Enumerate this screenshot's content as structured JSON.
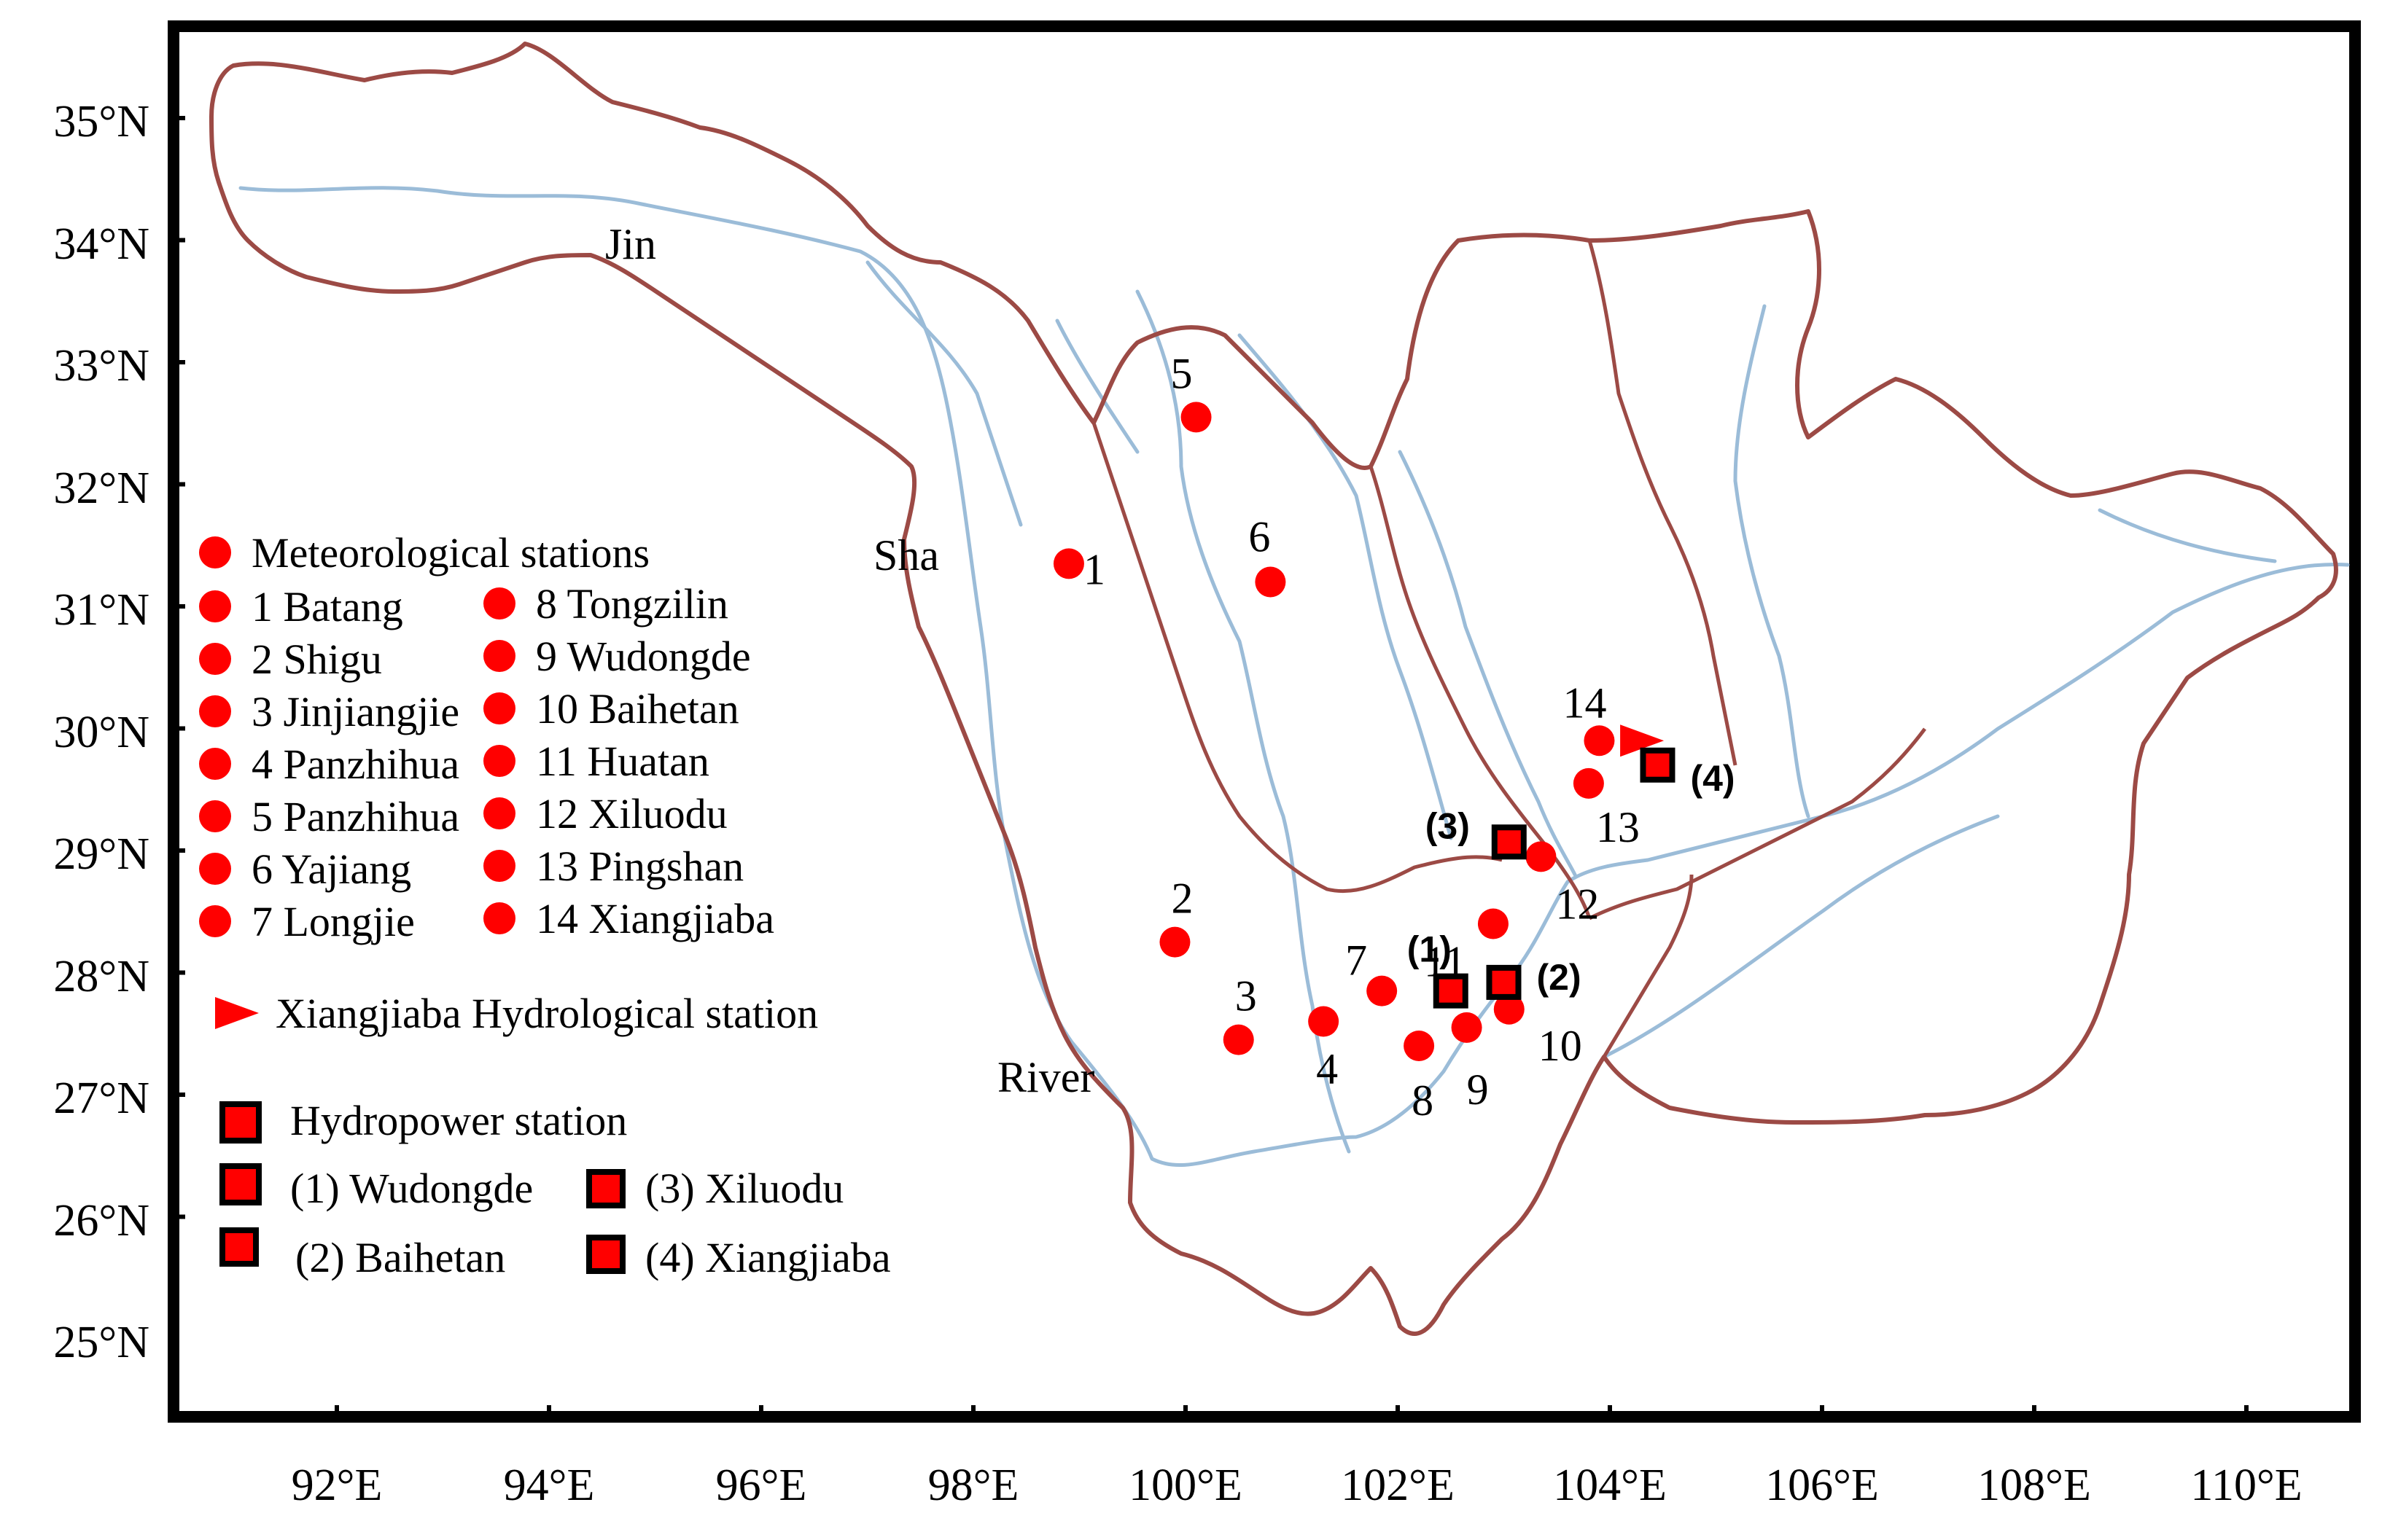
{
  "map": {
    "y_ticks": [
      "35°N",
      "34°N",
      "33°N",
      "32°N",
      "31°N",
      "30°N",
      "29°N",
      "28°N",
      "27°N",
      "26°N",
      "25°N"
    ],
    "x_ticks": [
      "92°E",
      "94°E",
      "96°E",
      "98°E",
      "100°E",
      "102°E",
      "104°E",
      "106°E",
      "108°E",
      "110°E"
    ],
    "river_labels": {
      "jin": "Jin",
      "sha": "Sha",
      "river": "River"
    },
    "colors": {
      "border": "#9c4a45",
      "river": "#9bbcd8",
      "station": "#ff0000",
      "frame": "#000000"
    },
    "stations": [
      {
        "id": "1",
        "lon": 98.9,
        "lat": 30.35
      },
      {
        "id": "2",
        "lon": 99.9,
        "lat": 27.25
      },
      {
        "id": "3",
        "lon": 100.5,
        "lat": 26.45
      },
      {
        "id": "4",
        "lon": 101.3,
        "lat": 26.6
      },
      {
        "id": "5",
        "lon": 100.1,
        "lat": 31.55
      },
      {
        "id": "6",
        "lon": 100.8,
        "lat": 30.2
      },
      {
        "id": "7",
        "lon": 101.85,
        "lat": 26.85
      },
      {
        "id": "8",
        "lon": 102.2,
        "lat": 26.4
      },
      {
        "id": "9",
        "lon": 102.65,
        "lat": 26.55
      },
      {
        "id": "10",
        "lon": 103.05,
        "lat": 26.7
      },
      {
        "id": "11",
        "lon": 102.9,
        "lat": 27.4
      },
      {
        "id": "12",
        "lon": 103.35,
        "lat": 27.95
      },
      {
        "id": "13",
        "lon": 103.8,
        "lat": 28.55
      },
      {
        "id": "14",
        "lon": 103.9,
        "lat": 28.9
      }
    ],
    "hydropower": [
      {
        "id": "(1)",
        "lon": 102.5,
        "lat": 26.85
      },
      {
        "id": "(2)",
        "lon": 103.0,
        "lat": 26.92
      },
      {
        "id": "(3)",
        "lon": 103.05,
        "lat": 28.07
      },
      {
        "id": "(4)",
        "lon": 104.45,
        "lat": 28.7
      }
    ],
    "hydrological_station": {
      "lon": 104.2,
      "lat": 28.9
    }
  },
  "legend": {
    "met_title": "Meteorological stations",
    "met_col1": [
      "1 Batang",
      "2  Shigu",
      "3 Jinjiangjie",
      "4 Panzhihua",
      "5 Panzhihua",
      "6 Yajiang",
      "7  Longjie"
    ],
    "met_col2": [
      "8 Tongzilin",
      "9 Wudongde",
      "10 Baihetan",
      "11 Huatan",
      "12 Xiluodu",
      "13 Pingshan",
      "14 Xiangjiaba"
    ],
    "hydrological": "Xiangjiaba Hydrological station",
    "hydro_title": "Hydropower station",
    "hydro_items": [
      "(1) Wudongde",
      "(3) Xiluodu",
      "(2) Baihetan",
      "(4) Xiangjiaba"
    ]
  }
}
